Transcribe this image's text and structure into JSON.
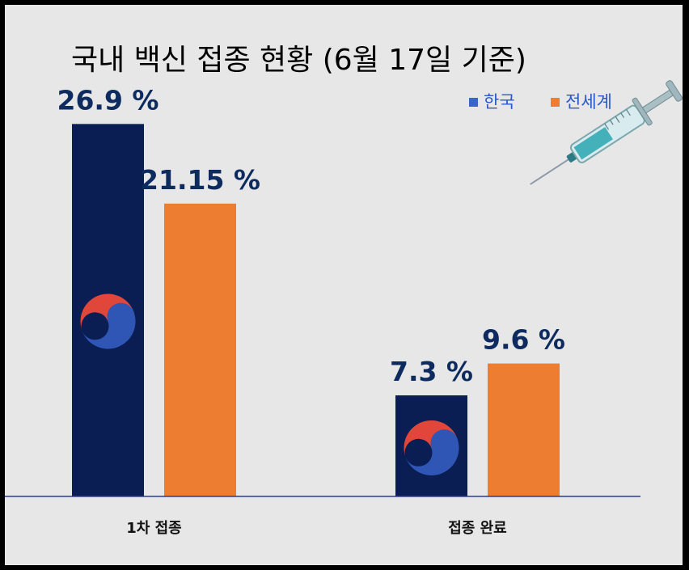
{
  "chart_data": {
    "type": "bar",
    "title": "국내 백신 접종 현황 (6월 17일 기준)",
    "categories": [
      "1차 접종",
      "접종 완료"
    ],
    "series": [
      {
        "name": "한국",
        "values": [
          26.9,
          7.3
        ],
        "labels": [
          "26.9 %",
          "7.3 %"
        ],
        "color": "#0b1e54"
      },
      {
        "name": "전세계",
        "values": [
          21.15,
          9.6
        ],
        "labels": [
          "21.15 %",
          "9.6 %"
        ],
        "color": "#ed7d31"
      }
    ],
    "ylim": [
      0,
      32
    ],
    "grid": false,
    "legend_position": "top-right",
    "xlabel": "",
    "ylabel": ""
  },
  "decorations": {
    "bar_emblem": "taegeuk-icon",
    "illustration": "syringe-icon"
  }
}
